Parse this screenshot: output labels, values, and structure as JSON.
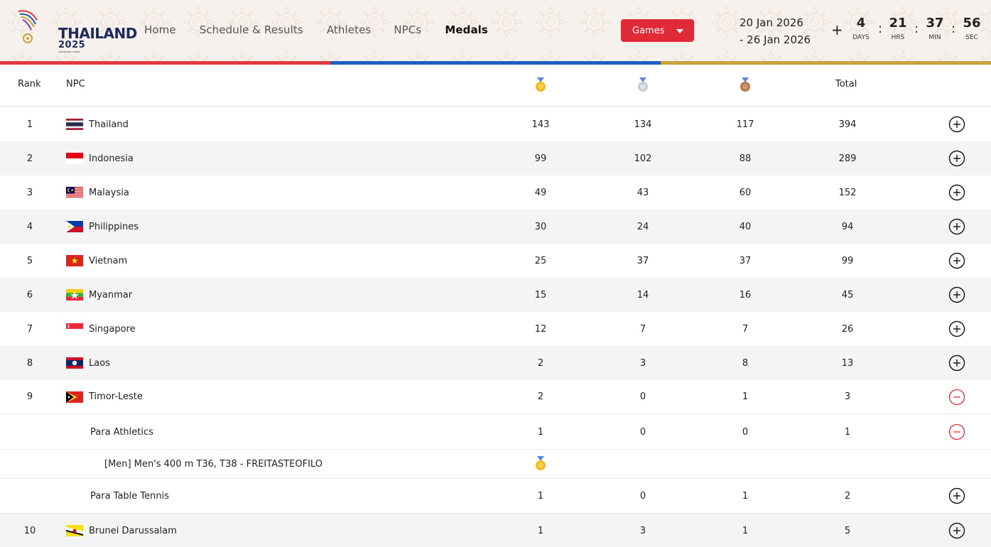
{
  "header": {
    "logo_text": "THAILAND",
    "logo_year": "2025",
    "logo_sub": "ASEAN PARA GAMES",
    "nav": [
      {
        "label": "Home",
        "active": false
      },
      {
        "label": "Schedule & Results",
        "active": false
      },
      {
        "label": "Athletes",
        "active": false
      },
      {
        "label": "NPCs",
        "active": false
      },
      {
        "label": "Medals",
        "active": true
      }
    ],
    "games_button": "Games",
    "date_start": "20 Jan 2026",
    "date_end": "- 26 Jan 2026",
    "countdown_prefix": "+",
    "countdown": [
      {
        "value": "4",
        "label": "DAYS"
      },
      {
        "value": "21",
        "label": "HRS"
      },
      {
        "value": "37",
        "label": "MIN"
      },
      {
        "value": "56",
        "label": "SEC"
      }
    ],
    "stripe_colors": [
      "#e03a3e",
      "#1f5fbf",
      "#c9a23a"
    ]
  },
  "table": {
    "headers": {
      "rank": "Rank",
      "npc": "NPC",
      "gold": "gold-medal-icon",
      "silver": "silver-medal-icon",
      "bronze": "bronze-medal-icon",
      "total": "Total"
    },
    "rows": [
      {
        "rank": "1",
        "npc": "Thailand",
        "flag": "thailand",
        "gold": "143",
        "silver": "134",
        "bronze": "117",
        "total": "394",
        "expanded": false
      },
      {
        "rank": "2",
        "npc": "Indonesia",
        "flag": "indonesia",
        "gold": "99",
        "silver": "102",
        "bronze": "88",
        "total": "289",
        "expanded": false
      },
      {
        "rank": "3",
        "npc": "Malaysia",
        "flag": "malaysia",
        "gold": "49",
        "silver": "43",
        "bronze": "60",
        "total": "152",
        "expanded": false
      },
      {
        "rank": "4",
        "npc": "Philippines",
        "flag": "philippines",
        "gold": "30",
        "silver": "24",
        "bronze": "40",
        "total": "94",
        "expanded": false
      },
      {
        "rank": "5",
        "npc": "Vietnam",
        "flag": "vietnam",
        "gold": "25",
        "silver": "37",
        "bronze": "37",
        "total": "99",
        "expanded": false
      },
      {
        "rank": "6",
        "npc": "Myanmar",
        "flag": "myanmar",
        "gold": "15",
        "silver": "14",
        "bronze": "16",
        "total": "45",
        "expanded": false
      },
      {
        "rank": "7",
        "npc": "Singapore",
        "flag": "singapore",
        "gold": "12",
        "silver": "7",
        "bronze": "7",
        "total": "26",
        "expanded": false
      },
      {
        "rank": "8",
        "npc": "Laos",
        "flag": "laos",
        "gold": "2",
        "silver": "3",
        "bronze": "8",
        "total": "13",
        "expanded": false
      },
      {
        "rank": "9",
        "npc": "Timor-Leste",
        "flag": "timor-leste",
        "gold": "2",
        "silver": "0",
        "bronze": "1",
        "total": "3",
        "expanded": true
      }
    ],
    "timor_sports": [
      {
        "sport": "Para Athletics",
        "gold": "1",
        "silver": "0",
        "bronze": "0",
        "total": "1",
        "expanded": true
      },
      {
        "sport": "Para Table Tennis",
        "gold": "1",
        "silver": "0",
        "bronze": "1",
        "total": "2",
        "expanded": false
      }
    ],
    "event": {
      "name": "[Men] Men's 400 m T36, T38 - FREITASTEOFILO",
      "medal": "gold-medal-icon"
    },
    "last_row": {
      "rank": "10",
      "npc": "Brunei Darussalam",
      "flag": "brunei",
      "gold": "1",
      "silver": "3",
      "bronze": "1",
      "total": "5",
      "expanded": false
    },
    "colors": {
      "gold": "#f2b81d",
      "silver": "#c4c9d2",
      "bronze": "#b8764a",
      "collapse": "#e02a36"
    }
  }
}
